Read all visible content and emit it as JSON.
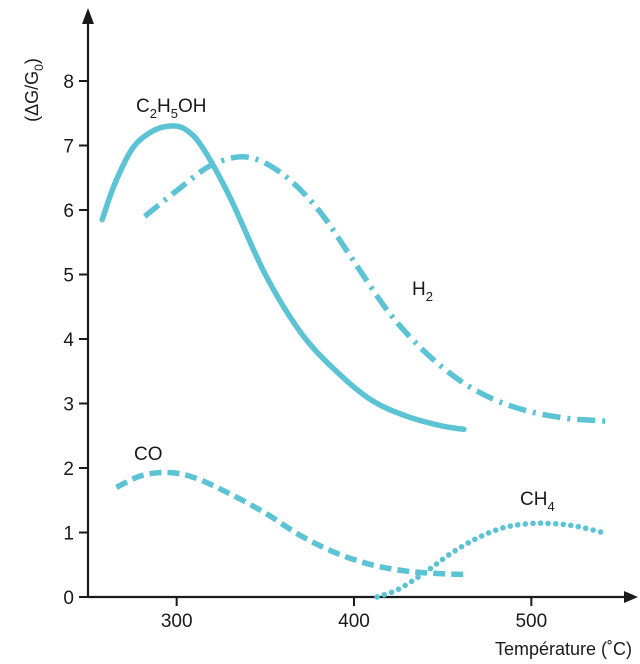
{
  "chart_data": {
    "type": "line",
    "xlabel": "Température (˚C)",
    "ylabel": "(ΔG/G0)",
    "ylabel_parts": {
      "open": "(ΔG/G",
      "sub": "0",
      "close": ")"
    },
    "xlim": [
      250,
      550
    ],
    "ylim": [
      0,
      8
    ],
    "x_ticks": [
      "300",
      "400",
      "500"
    ],
    "x_tick_values": [
      300,
      400,
      500
    ],
    "y_ticks": [
      "0",
      "1",
      "2",
      "3",
      "4",
      "5",
      "6",
      "7",
      "8"
    ],
    "y_tick_values": [
      0,
      1,
      2,
      3,
      4,
      5,
      6,
      7,
      8
    ],
    "grid": false,
    "legend": "none",
    "series_color": "#5bc3d3",
    "series": [
      {
        "name": "C2H5OH",
        "label_main": "C",
        "label_sub1": "2",
        "label_mid": "H",
        "label_sub2": "5",
        "label_tail": "OH",
        "style": "solid",
        "x": [
          258,
          265,
          275,
          285,
          295,
          305,
          315,
          330,
          350,
          370,
          390,
          410,
          430,
          450,
          462
        ],
        "y": [
          5.85,
          6.4,
          6.95,
          7.2,
          7.3,
          7.25,
          6.95,
          6.2,
          5.0,
          4.1,
          3.5,
          3.05,
          2.8,
          2.65,
          2.6
        ]
      },
      {
        "name": "H2",
        "label_main": "H",
        "label_sub1": "2",
        "style": "dashdot",
        "x": [
          282,
          300,
          320,
          340,
          360,
          380,
          400,
          420,
          440,
          460,
          480,
          500,
          520,
          535,
          545
        ],
        "y": [
          5.9,
          6.3,
          6.7,
          6.82,
          6.55,
          6.0,
          5.2,
          4.4,
          3.8,
          3.35,
          3.05,
          2.87,
          2.77,
          2.74,
          2.72
        ]
      },
      {
        "name": "CO",
        "label_main": "CO",
        "style": "dashed",
        "x": [
          266,
          280,
          295,
          310,
          330,
          350,
          370,
          390,
          410,
          430,
          450,
          462
        ],
        "y": [
          1.7,
          1.88,
          1.93,
          1.85,
          1.6,
          1.3,
          0.95,
          0.68,
          0.5,
          0.4,
          0.36,
          0.35
        ]
      },
      {
        "name": "CH4",
        "label_main": "CH",
        "label_sub1": "4",
        "style": "dotted",
        "x": [
          413,
          425,
          440,
          455,
          470,
          485,
          500,
          510,
          520,
          530,
          540
        ],
        "y": [
          0.0,
          0.12,
          0.38,
          0.68,
          0.92,
          1.08,
          1.14,
          1.14,
          1.12,
          1.07,
          1.0
        ]
      }
    ]
  }
}
